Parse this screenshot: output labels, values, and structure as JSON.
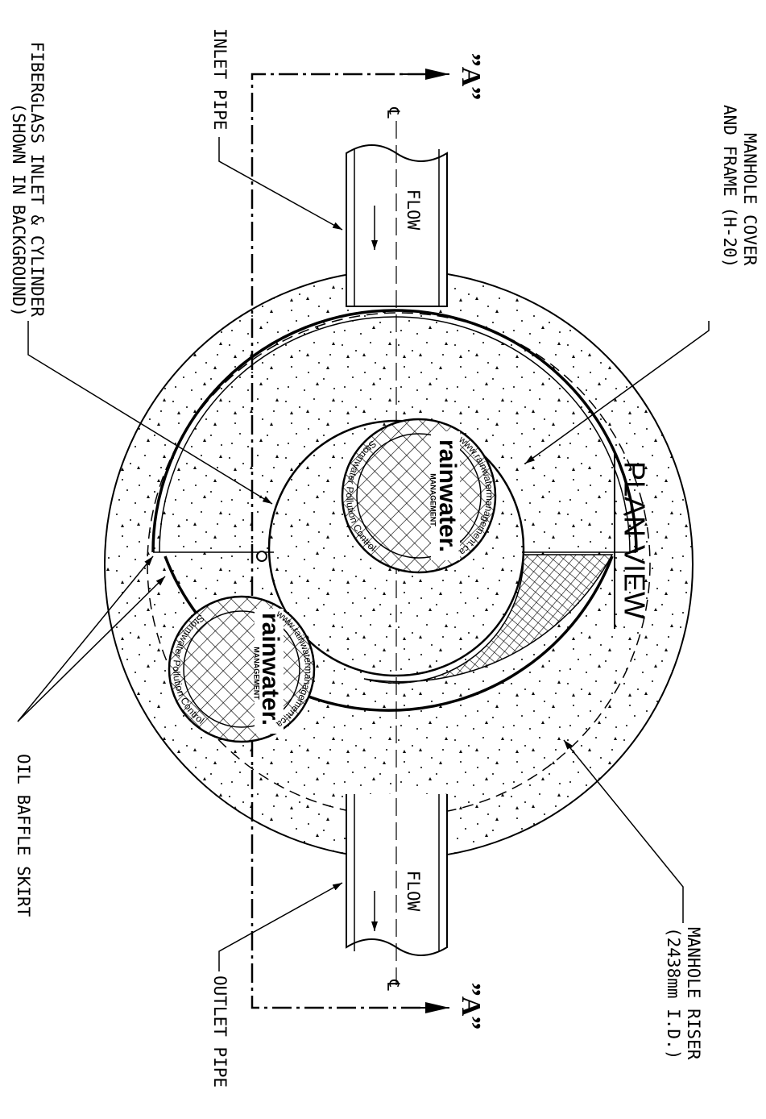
{
  "labels": {
    "manhole_cover": [
      "MANHOLE COVER",
      "AND FRAME (H-20)"
    ],
    "inlet_pipe": "INLET PIPE",
    "fiberglass": [
      "FIBERGLASS INLET & CYLINDER",
      "(SHOWN IN BACKGROUND)"
    ],
    "plan_view": "PLAN VIEW",
    "oil_baffle": "OIL BAFFLE SKIRT",
    "outlet_pipe": "OUTLET PIPE",
    "manhole_riser": [
      "MANHOLE RISER",
      "(2438mm I.D.)"
    ],
    "section_top": "”A”",
    "section_bottom": "”A”",
    "flow_in": "FLOW",
    "flow_out": "FLOW",
    "centerline_top": "℄",
    "centerline_bottom": "℄"
  },
  "logos": [
    {
      "name": "rainwater.",
      "sub": "MANAGEMENT",
      "url": "www.rainwatermanagement.ca",
      "tagline": "Stormwater Pollution Control"
    },
    {
      "name": "rainwater.",
      "sub": "MANAGEMENT",
      "url": "www.rainwatermanagement.ca",
      "tagline": "Stormwater Pollution Control"
    }
  ]
}
